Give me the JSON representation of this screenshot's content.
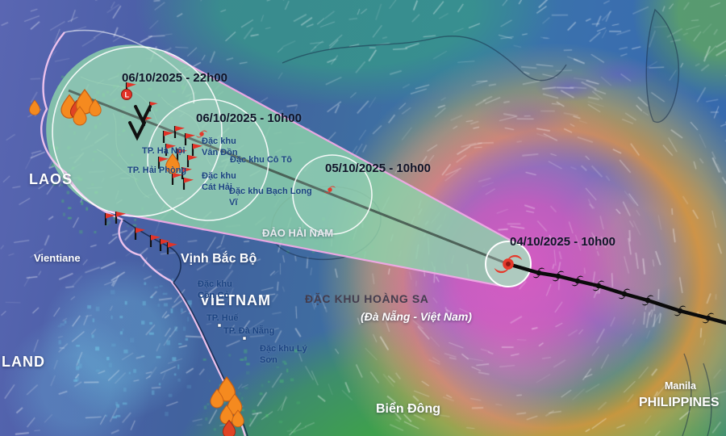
{
  "labels": {
    "regions": {
      "laos": "LAOS",
      "vientiane": "Vientiane",
      "thailand_partial": "LAND",
      "vietnam": "VIETNAM",
      "gulf_of_tonkin": "Vịnh Bắc Bộ",
      "hainan": "ĐẢO HẢI NAM",
      "hoang_sa_title": "ĐẶC KHU HOÀNG SA",
      "hoang_sa_sub": "(Đà Nẵng - Việt Nam)",
      "east_sea": "Biển Đông",
      "manila": "Manila",
      "philippines": "PHILIPPINES"
    },
    "places": {
      "hanoi": "TP. Hà Nội",
      "haiphong": "TP. Hải Phòng",
      "van_don": "Đặc khu Vân Đồn",
      "co_to": "Đặc khu Cô Tô",
      "cat_hai": "Đặc khu Cát Hải",
      "bach_long_vi": "Đặc khu Bạch Long Vĩ",
      "con_co": "Đặc khu Cồn Cỏ",
      "hue": "TP. Huế",
      "da_nang": "TP. Đà Nẵng",
      "ly_son": "Đặc khu Lý Sơn"
    }
  },
  "forecast": {
    "points": [
      {
        "label": "06/10/2025 - 22h00"
      },
      {
        "label": "06/10/2025 - 10h00"
      },
      {
        "label": "05/10/2025 - 10h00"
      },
      {
        "label": "04/10/2025 - 10h00"
      }
    ]
  },
  "icons": {
    "low_pressure_letter": "L",
    "storm_current": "typhoon-icon-red",
    "storm_past": "typhoon-icon-black",
    "rain_warning": "droplet-warning-icon",
    "storm_flag": "red-flag-icon"
  },
  "colors": {
    "cone_fill": "#8ed3ab",
    "cone_edge": "#f0a9e6",
    "storm_red": "#e6392b",
    "warning_orange": "#f58a1f",
    "track_black": "#0b0b0b"
  }
}
